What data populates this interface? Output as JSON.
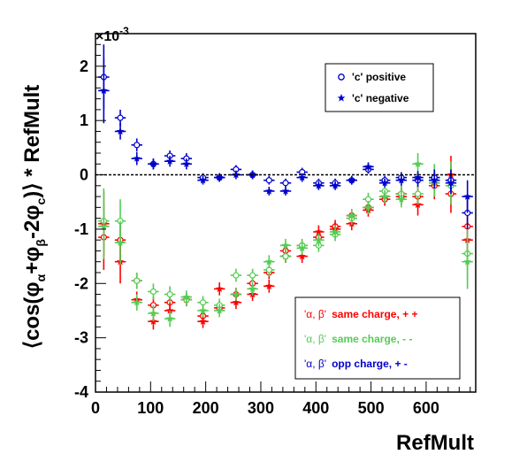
{
  "chart_data": {
    "type": "scatter",
    "title": "",
    "xlabel": "RefMult",
    "ylabel": "⟨cos(φα+φβ-2φc)⟩ * RefMult",
    "ylabel_parts": {
      "prefix": "⟨cos(φ",
      "sub1": "α",
      "plus": "+φ",
      "sub2": "β",
      "minus": "-2φ",
      "sub3": "c",
      "suffix": ")⟩ * RefMult"
    },
    "y_multiplier": "×10",
    "y_multiplier_exp": "-3",
    "xlim": [
      0,
      690
    ],
    "ylim": [
      -4,
      2.6
    ],
    "x_ticks": [
      0,
      100,
      200,
      300,
      400,
      500,
      600
    ],
    "y_ticks": [
      -4,
      -3,
      -2,
      -1,
      0,
      1,
      2
    ],
    "reference_line": 0,
    "legend_top": [
      {
        "label": "'c' positive",
        "marker": "open-circle",
        "color": "#0000cc"
      },
      {
        "label": "'c' negative",
        "marker": "star",
        "color": "#0000cc"
      }
    ],
    "legend_bottom": [
      {
        "label_greek": "'α, β'",
        "label_text": "same charge, + +",
        "color": "#ff0000"
      },
      {
        "label_greek": "'α, β'",
        "label_text": "same charge, - -",
        "color": "#55cc55"
      },
      {
        "label_greek": "'α, β'",
        "label_text": "opp charge, + -",
        "color": "#0000cc"
      }
    ],
    "x_half_width": 10,
    "series": [
      {
        "name": "'α, β' same charge, + + / 'c' positive",
        "color": "#ff0000",
        "marker": "open-circle",
        "x": [
          15,
          45,
          75,
          105,
          135,
          165,
          195,
          225,
          255,
          285,
          315,
          345,
          375,
          405,
          435,
          465,
          495,
          525,
          555,
          585,
          615,
          645,
          675
        ],
        "y": [
          -1.15,
          -1.2,
          -1.95,
          -2.4,
          -2.35,
          -2.3,
          -2.6,
          -2.45,
          -2.2,
          -2.0,
          -1.8,
          -1.4,
          -1.3,
          -1.15,
          -0.95,
          -0.75,
          -0.6,
          -0.45,
          -0.4,
          -0.4,
          -0.2,
          -0.35,
          -0.95
        ],
        "err": [
          0.6,
          0.4,
          0.15,
          0.15,
          0.15,
          0.12,
          0.12,
          0.12,
          0.12,
          0.12,
          0.12,
          0.12,
          0.12,
          0.12,
          0.12,
          0.12,
          0.12,
          0.12,
          0.15,
          0.2,
          0.25,
          0.35,
          0.5
        ]
      },
      {
        "name": "'α, β' same charge, + + / 'c' negative",
        "color": "#ff0000",
        "marker": "star",
        "x": [
          15,
          45,
          75,
          105,
          135,
          165,
          195,
          225,
          255,
          285,
          315,
          345,
          375,
          405,
          435,
          465,
          495,
          525,
          555,
          585,
          615,
          645,
          675
        ],
        "y": [
          -0.9,
          -1.6,
          -2.3,
          -2.7,
          -2.5,
          -2.3,
          -2.7,
          -2.1,
          -2.35,
          -2.2,
          -2.05,
          -1.5,
          -1.5,
          -1.05,
          -1.0,
          -0.9,
          -0.65,
          -0.4,
          -0.35,
          -0.55,
          -0.15,
          0.0,
          -1.2
        ],
        "err": [
          0.6,
          0.4,
          0.15,
          0.15,
          0.15,
          0.12,
          0.12,
          0.12,
          0.12,
          0.12,
          0.12,
          0.12,
          0.12,
          0.12,
          0.12,
          0.12,
          0.12,
          0.12,
          0.15,
          0.2,
          0.25,
          0.35,
          0.5
        ]
      },
      {
        "name": "'α, β' same charge, - - / 'c' positive",
        "color": "#55cc55",
        "marker": "open-circle",
        "x": [
          15,
          45,
          75,
          105,
          135,
          165,
          195,
          225,
          255,
          285,
          315,
          345,
          375,
          405,
          435,
          465,
          495,
          525,
          555,
          585,
          615,
          645,
          675
        ],
        "y": [
          -0.85,
          -0.85,
          -1.95,
          -2.15,
          -2.2,
          -2.3,
          -2.35,
          -2.4,
          -1.85,
          -1.85,
          -1.75,
          -1.5,
          -1.3,
          -1.3,
          -1.1,
          -0.8,
          -0.45,
          -0.3,
          -0.35,
          -0.35,
          -0.05,
          -0.2,
          -1.45
        ],
        "err": [
          0.6,
          0.4,
          0.15,
          0.15,
          0.15,
          0.12,
          0.12,
          0.12,
          0.12,
          0.12,
          0.12,
          0.12,
          0.12,
          0.12,
          0.12,
          0.12,
          0.12,
          0.12,
          0.15,
          0.2,
          0.25,
          0.35,
          0.5
        ]
      },
      {
        "name": "'α, β' same charge, - - / 'c' negative",
        "color": "#55cc55",
        "marker": "star",
        "x": [
          15,
          45,
          75,
          105,
          135,
          165,
          195,
          225,
          255,
          285,
          315,
          345,
          375,
          405,
          435,
          465,
          495,
          525,
          555,
          585,
          615,
          645,
          675
        ],
        "y": [
          -0.95,
          -1.25,
          -2.35,
          -2.55,
          -2.65,
          -2.25,
          -2.5,
          -2.5,
          -2.2,
          -2.1,
          -1.6,
          -1.3,
          -1.35,
          -1.2,
          -1.05,
          -0.75,
          -0.6,
          -0.4,
          -0.45,
          0.2,
          -0.15,
          -0.1,
          -1.6
        ],
        "err": [
          0.6,
          0.4,
          0.15,
          0.15,
          0.15,
          0.12,
          0.12,
          0.12,
          0.12,
          0.12,
          0.12,
          0.12,
          0.12,
          0.12,
          0.12,
          0.12,
          0.12,
          0.12,
          0.15,
          0.2,
          0.25,
          0.35,
          0.5
        ]
      },
      {
        "name": "'α, β' opp charge, + - / 'c' positive",
        "color": "#0000cc",
        "marker": "open-circle",
        "x": [
          15,
          45,
          75,
          105,
          135,
          165,
          195,
          225,
          255,
          285,
          315,
          345,
          375,
          405,
          435,
          465,
          495,
          525,
          555,
          585,
          615,
          645,
          675
        ],
        "y": [
          1.8,
          1.05,
          0.55,
          0.2,
          0.35,
          0.3,
          -0.05,
          -0.05,
          0.1,
          0.0,
          -0.1,
          -0.15,
          0.05,
          -0.15,
          -0.15,
          -0.1,
          0.1,
          -0.1,
          -0.05,
          -0.1,
          -0.05,
          -0.1,
          -0.7
        ],
        "err": [
          0.6,
          0.15,
          0.12,
          0.1,
          0.1,
          0.1,
          0.08,
          0.08,
          0.08,
          0.08,
          0.08,
          0.08,
          0.08,
          0.08,
          0.08,
          0.08,
          0.08,
          0.08,
          0.1,
          0.12,
          0.15,
          0.2,
          0.3
        ]
      },
      {
        "name": "'α, β' opp charge, + - / 'c' negative",
        "color": "#0000cc",
        "marker": "star",
        "x": [
          15,
          45,
          75,
          105,
          135,
          165,
          195,
          225,
          255,
          285,
          315,
          345,
          375,
          405,
          435,
          465,
          495,
          525,
          555,
          585,
          615,
          645,
          675
        ],
        "y": [
          1.55,
          0.8,
          0.3,
          0.2,
          0.25,
          0.2,
          -0.1,
          -0.05,
          0.0,
          0.0,
          -0.3,
          -0.3,
          -0.05,
          -0.2,
          -0.2,
          -0.1,
          0.15,
          -0.15,
          -0.1,
          -0.05,
          -0.1,
          -0.15,
          -0.4
        ],
        "err": [
          0.6,
          0.15,
          0.12,
          0.1,
          0.1,
          0.1,
          0.08,
          0.08,
          0.08,
          0.08,
          0.08,
          0.08,
          0.08,
          0.08,
          0.08,
          0.08,
          0.08,
          0.08,
          0.1,
          0.12,
          0.15,
          0.2,
          0.3
        ]
      }
    ]
  }
}
